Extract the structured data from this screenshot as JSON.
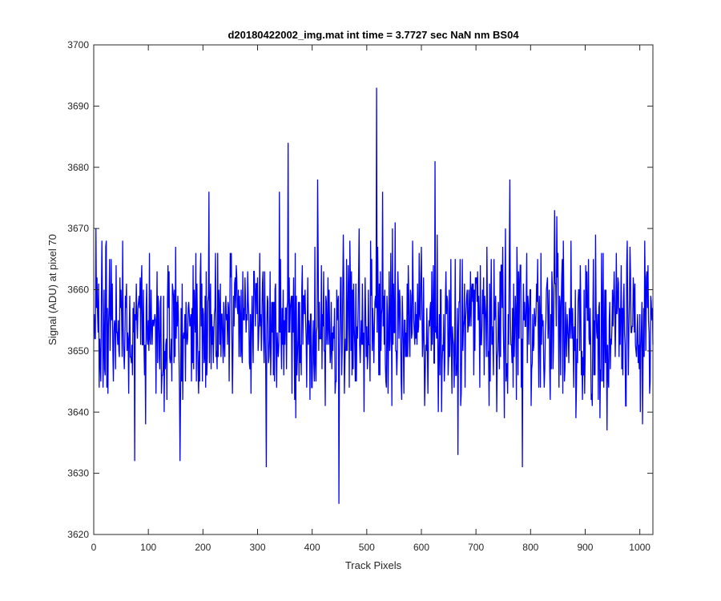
{
  "window": {
    "background": "#ffffff"
  },
  "chart_data": {
    "type": "line",
    "title": "d20180422002_img.mat int time = 3.7727 sec  NaN nm BS04",
    "xlabel": "Track Pixels",
    "ylabel": "Signal (ADU) at pixel 70",
    "xlim": [
      0,
      1024
    ],
    "ylim": [
      3620,
      3700
    ],
    "xticks": [
      0,
      100,
      200,
      300,
      400,
      500,
      600,
      700,
      800,
      900,
      1000
    ],
    "yticks": [
      3620,
      3630,
      3640,
      3650,
      3660,
      3670,
      3680,
      3690,
      3700
    ],
    "grid": false,
    "box": true,
    "axes_color": "#262626",
    "series": [
      {
        "color": "#0000ff",
        "n_points": 1024,
        "mean": 3654,
        "typical_range": [
          3638,
          3670
        ],
        "noteworthy_points": [
          {
            "x": 75,
            "y": 3632
          },
          {
            "x": 158,
            "y": 3632
          },
          {
            "x": 316,
            "y": 3631
          },
          {
            "x": 340,
            "y": 3676
          },
          {
            "x": 356,
            "y": 3684
          },
          {
            "x": 410,
            "y": 3678
          },
          {
            "x": 449,
            "y": 3625
          },
          {
            "x": 518,
            "y": 3693
          },
          {
            "x": 529,
            "y": 3676
          },
          {
            "x": 625,
            "y": 3681
          },
          {
            "x": 667,
            "y": 3633
          },
          {
            "x": 762,
            "y": 3678
          },
          {
            "x": 785,
            "y": 3631
          }
        ]
      }
    ]
  }
}
